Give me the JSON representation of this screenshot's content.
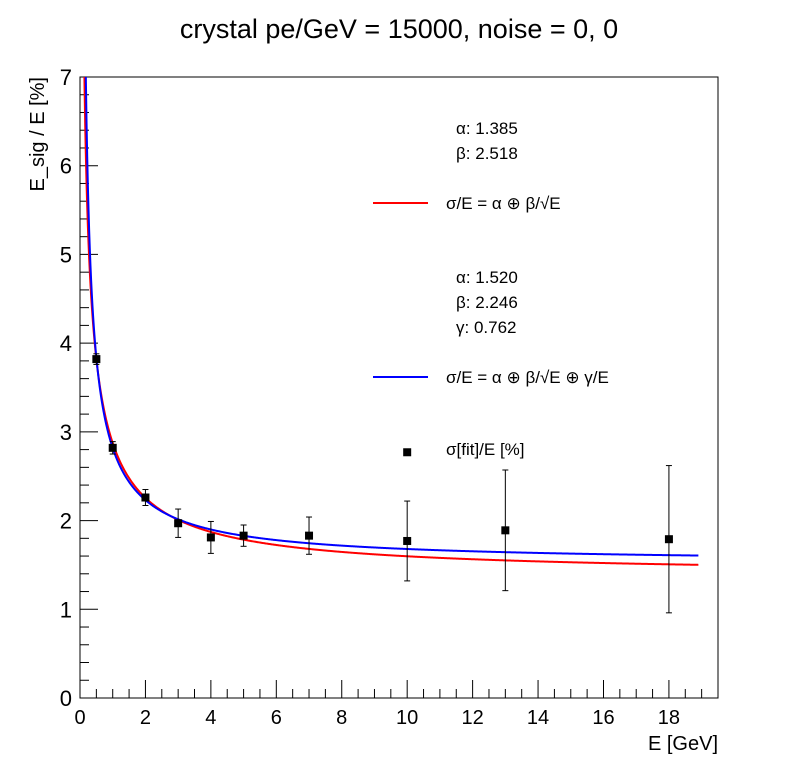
{
  "chart_data": {
    "type": "scatter",
    "title": "crystal pe/GeV = 15000, noise = 0, 0",
    "xlabel": "E [GeV]",
    "ylabel": "E_sig / E [%]",
    "xlim": [
      0,
      19.5
    ],
    "ylim": [
      0,
      7
    ],
    "x_ticks": [
      "0",
      "2",
      "4",
      "6",
      "8",
      "10",
      "12",
      "14",
      "16",
      "18"
    ],
    "y_ticks": [
      "0",
      "1",
      "2",
      "3",
      "4",
      "5",
      "6",
      "7"
    ],
    "grid": false,
    "legend_position": "top-right",
    "points": {
      "name": "σ[fit]/E [%]",
      "color": "#000000",
      "x": [
        0.5,
        1,
        2,
        3,
        4,
        5,
        7,
        10,
        13,
        18
      ],
      "y": [
        3.82,
        2.82,
        2.26,
        1.97,
        1.81,
        1.83,
        1.83,
        1.77,
        1.89,
        1.79
      ],
      "err": [
        0.06,
        0.07,
        0.09,
        0.16,
        0.18,
        0.12,
        0.21,
        0.45,
        0.68,
        0.83
      ]
    },
    "extra_point": {
      "x": 10,
      "y": 2.77
    },
    "fits": [
      {
        "formula": "σ/E = α ⊕ β/√E",
        "color": "#ff0000",
        "params": [
          {
            "name": "α",
            "value": "1.385"
          },
          {
            "name": "β",
            "value": "2.518"
          }
        ],
        "alpha": 1.385,
        "beta": 2.518,
        "gamma": 0
      },
      {
        "formula": "σ/E = α ⊕ β/√E ⊕ γ/E",
        "color": "#0000ff",
        "params": [
          {
            "name": "α",
            "value": "1.520"
          },
          {
            "name": "β",
            "value": "2.246"
          },
          {
            "name": "γ",
            "value": "0.762"
          }
        ],
        "alpha": 1.52,
        "beta": 2.246,
        "gamma": 0.762
      }
    ]
  }
}
